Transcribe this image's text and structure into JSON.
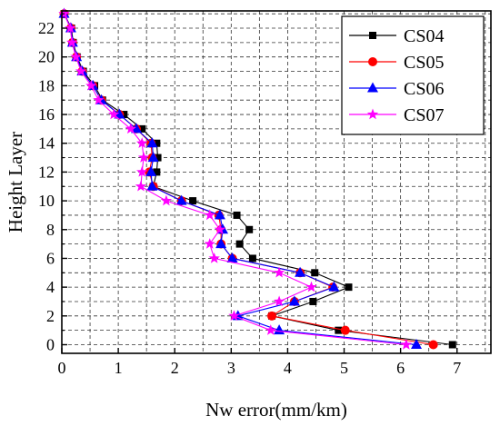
{
  "chart_data": {
    "type": "line",
    "title": "",
    "xlabel": "Nw error(mm/km)",
    "ylabel": "Height Layer",
    "xlim": [
      0,
      7.6
    ],
    "ylim": [
      -0.6,
      23.2
    ],
    "xticks": [
      0,
      1,
      2,
      3,
      4,
      5,
      6,
      7
    ],
    "yticks": [
      0,
      2,
      4,
      6,
      8,
      10,
      12,
      14,
      16,
      18,
      20,
      22
    ],
    "grid": true,
    "legend_position": "top-right",
    "y": [
      0,
      1,
      2,
      3,
      4,
      5,
      6,
      7,
      8,
      9,
      10,
      11,
      12,
      13,
      14,
      15,
      16,
      17,
      18,
      19,
      20,
      21,
      22,
      23
    ],
    "series": [
      {
        "name": "CS04",
        "color": "#000000",
        "marker": "square",
        "x": [
          6.92,
          4.9,
          3.72,
          4.45,
          5.08,
          4.48,
          3.38,
          3.15,
          3.32,
          3.1,
          2.32,
          1.62,
          1.68,
          1.7,
          1.68,
          1.42,
          1.1,
          0.72,
          0.58,
          0.38,
          0.27,
          0.2,
          0.17,
          0.04
        ]
      },
      {
        "name": "CS05",
        "color": "#ff0000",
        "marker": "circle",
        "x": [
          6.58,
          5.02,
          3.72,
          4.12,
          4.8,
          4.22,
          3.02,
          2.82,
          2.82,
          2.78,
          2.12,
          1.62,
          1.55,
          1.6,
          1.58,
          1.32,
          1.02,
          0.7,
          0.55,
          0.36,
          0.26,
          0.19,
          0.16,
          0.04
        ]
      },
      {
        "name": "CS06",
        "color": "#0000ff",
        "marker": "triangle",
        "x": [
          6.28,
          3.85,
          3.12,
          4.12,
          4.82,
          4.22,
          3.02,
          2.82,
          2.85,
          2.8,
          2.12,
          1.6,
          1.58,
          1.62,
          1.6,
          1.32,
          1.02,
          0.7,
          0.55,
          0.36,
          0.26,
          0.19,
          0.16,
          0.04
        ]
      },
      {
        "name": "CS07",
        "color": "#ff00ff",
        "marker": "star",
        "x": [
          6.1,
          3.7,
          3.05,
          3.85,
          4.42,
          3.85,
          2.7,
          2.62,
          2.8,
          2.62,
          1.85,
          1.4,
          1.42,
          1.45,
          1.42,
          1.22,
          0.92,
          0.65,
          0.52,
          0.34,
          0.25,
          0.18,
          0.15,
          0.04
        ]
      }
    ]
  }
}
